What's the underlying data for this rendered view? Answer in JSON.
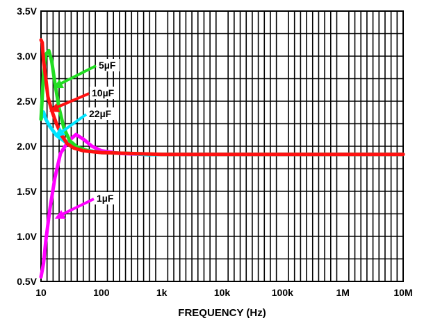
{
  "chart_data": {
    "type": "line",
    "xlabel": "FREQUENCY (Hz)",
    "ylabel": "",
    "xscale": "log",
    "xlim": [
      10,
      10000000
    ],
    "ylim": [
      0.5,
      3.5
    ],
    "grid": true,
    "x_ticks": [
      {
        "value": 10,
        "label": "10"
      },
      {
        "value": 100,
        "label": "100"
      },
      {
        "value": 1000,
        "label": "1k"
      },
      {
        "value": 10000,
        "label": "10k"
      },
      {
        "value": 100000,
        "label": "100k"
      },
      {
        "value": 1000000,
        "label": "1M"
      },
      {
        "value": 10000000,
        "label": "10M"
      }
    ],
    "y_ticks": [
      {
        "value": 0.5,
        "label": "0.5V"
      },
      {
        "value": 1.0,
        "label": "1.0V"
      },
      {
        "value": 1.5,
        "label": "1.5V"
      },
      {
        "value": 2.0,
        "label": "2.0V"
      },
      {
        "value": 2.5,
        "label": "2.5V"
      },
      {
        "value": 3.0,
        "label": "3.0V"
      },
      {
        "value": 3.5,
        "label": "3.5V"
      }
    ],
    "series": [
      {
        "name": "1µF",
        "color": "#ff00ff",
        "points": [
          [
            10,
            0.55
          ],
          [
            11,
            0.7
          ],
          [
            12,
            0.95
          ],
          [
            14,
            1.3
          ],
          [
            17,
            1.65
          ],
          [
            21,
            1.92
          ],
          [
            25,
            2.0
          ],
          [
            30,
            2.07
          ],
          [
            38,
            2.13
          ],
          [
            50,
            2.08
          ],
          [
            70,
            2.0
          ],
          [
            100,
            1.95
          ],
          [
            200,
            1.92
          ],
          [
            500,
            1.91
          ],
          [
            1000,
            1.91
          ],
          [
            10000000,
            1.91
          ]
        ]
      },
      {
        "name": "22µF",
        "color": "#00e5ff",
        "points": [
          [
            10,
            2.3
          ],
          [
            11,
            2.38
          ],
          [
            12,
            2.3
          ],
          [
            14,
            2.22
          ],
          [
            18,
            2.12
          ],
          [
            25,
            2.05
          ],
          [
            35,
            2.0
          ],
          [
            50,
            1.96
          ],
          [
            100,
            1.93
          ],
          [
            300,
            1.92
          ],
          [
            600,
            1.905
          ],
          [
            1000,
            1.91
          ],
          [
            10000000,
            1.91
          ]
        ]
      },
      {
        "name": "5µF",
        "color": "#22dd22",
        "points": [
          [
            10,
            2.3
          ],
          [
            11,
            2.8
          ],
          [
            12,
            3.02
          ],
          [
            13.5,
            3.06
          ],
          [
            15,
            2.95
          ],
          [
            17,
            2.7
          ],
          [
            20,
            2.42
          ],
          [
            24,
            2.2
          ],
          [
            30,
            2.06
          ],
          [
            40,
            1.99
          ],
          [
            60,
            1.95
          ],
          [
            100,
            1.93
          ],
          [
            300,
            1.92
          ],
          [
            1000,
            1.91
          ],
          [
            10000000,
            1.91
          ]
        ]
      },
      {
        "name": "10µF",
        "color": "#ff1111",
        "points": [
          [
            10,
            3.18
          ],
          [
            10.5,
            3.15
          ],
          [
            11,
            2.95
          ],
          [
            12,
            2.75
          ],
          [
            13,
            2.55
          ],
          [
            15,
            2.4
          ],
          [
            18,
            2.25
          ],
          [
            22,
            2.12
          ],
          [
            27,
            2.03
          ],
          [
            35,
            1.98
          ],
          [
            50,
            1.95
          ],
          [
            100,
            1.93
          ],
          [
            300,
            1.92
          ],
          [
            1000,
            1.91
          ],
          [
            10000000,
            1.91
          ]
        ]
      }
    ],
    "annotations": [
      {
        "label": "5µF",
        "series": "5µF",
        "point": [
          15,
          2.63
        ]
      },
      {
        "label": "10µF",
        "series": "10µF",
        "point": [
          13,
          2.37
        ]
      },
      {
        "label": "22µF",
        "series": "22µF",
        "point": [
          16,
          2.09
        ]
      },
      {
        "label": "1µF",
        "series": "1µF",
        "point": [
          16,
          1.18
        ]
      }
    ]
  }
}
